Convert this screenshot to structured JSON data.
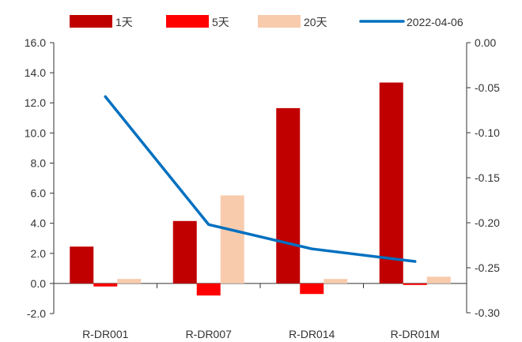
{
  "chart_data": {
    "type": "bar+line",
    "categories": [
      "R-DR001",
      "R-DR007",
      "R-DR014",
      "R-DR01M"
    ],
    "series": [
      {
        "name": "1天",
        "type": "bar",
        "axis": "left",
        "color": "#C00000",
        "values": [
          2.45,
          4.15,
          11.65,
          13.35
        ]
      },
      {
        "name": "5天",
        "type": "bar",
        "axis": "left",
        "color": "#FF0000",
        "values": [
          -0.2,
          -0.8,
          -0.7,
          -0.1
        ]
      },
      {
        "name": "20天",
        "type": "bar",
        "axis": "left",
        "color": "#F8CBAD",
        "values": [
          0.3,
          5.85,
          0.3,
          0.45
        ]
      },
      {
        "name": "2022-04-06",
        "type": "line",
        "axis": "right",
        "color": "#0070C0",
        "values": [
          -0.06,
          -0.202,
          -0.229,
          -0.243
        ]
      }
    ],
    "y_left": {
      "min": -2.0,
      "max": 16.0,
      "ticks": [
        "16.0",
        "14.0",
        "12.0",
        "10.0",
        "8.0",
        "6.0",
        "4.0",
        "2.0",
        "0.0",
        "-2.0"
      ]
    },
    "y_right": {
      "min": -0.3,
      "max": 0.0,
      "ticks": [
        "0.00",
        "-0.05",
        "-0.10",
        "-0.15",
        "-0.20",
        "-0.25",
        "-0.30"
      ]
    },
    "legend": "top"
  }
}
